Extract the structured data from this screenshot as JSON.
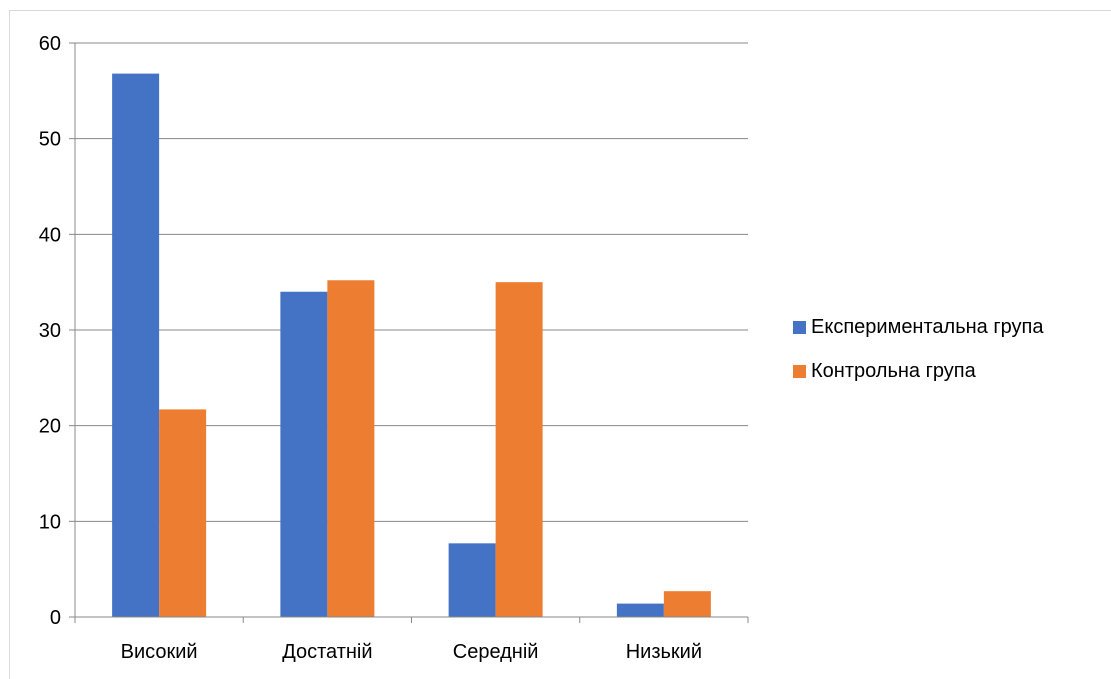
{
  "chart_data": {
    "type": "bar",
    "categories": [
      "Високий",
      "Достатній",
      "Середній",
      "Низький"
    ],
    "series": [
      {
        "name": "Експериментальна група",
        "values": [
          56.8,
          34.0,
          7.7,
          1.4
        ],
        "color": "#4472C4"
      },
      {
        "name": "Контрольна група",
        "values": [
          21.7,
          35.2,
          35.0,
          2.7
        ],
        "color": "#ED7D31"
      }
    ],
    "yticks": [
      0,
      10,
      20,
      30,
      40,
      50,
      60
    ],
    "ylim": [
      0,
      60
    ],
    "grid": true,
    "legend_position": "right"
  }
}
